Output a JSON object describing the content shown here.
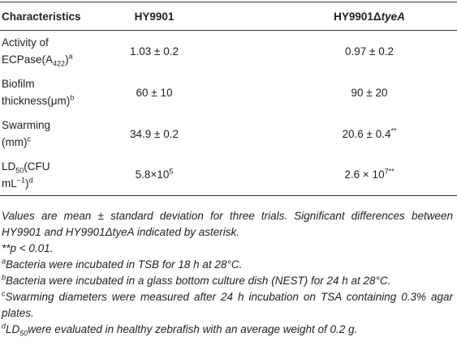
{
  "table": {
    "header": [
      [
        [
          {
            "text": "Characteristics"
          }
        ]
      ],
      [
        [
          {
            "text": "HY9901"
          }
        ]
      ],
      [
        [
          {
            "text": "HY9901Δ"
          },
          {
            "bi": "tyeA"
          }
        ]
      ]
    ],
    "rows": [
      [
        [
          [
            {
              "text": "Activity of"
            }
          ],
          [
            {
              "text": "ECPase(A"
            },
            {
              "sub": "422"
            },
            {
              "text": ")"
            },
            {
              "sup": "a"
            }
          ]
        ],
        [
          [
            {
              "text": "1.03 ± 0.2"
            }
          ]
        ],
        [
          [
            {
              "text": "0.97 ± 0.2"
            }
          ]
        ]
      ],
      [
        [
          [
            {
              "text": "Biofilm"
            }
          ],
          [
            {
              "text": "thickness(μm)"
            },
            {
              "sup": "b"
            }
          ]
        ],
        [
          [
            {
              "text": "60 ± 10"
            }
          ]
        ],
        [
          [
            {
              "text": "90 ± 20"
            }
          ]
        ]
      ],
      [
        [
          [
            {
              "text": "Swarming"
            }
          ],
          [
            {
              "text": "(mm)"
            },
            {
              "sup": "c"
            }
          ]
        ],
        [
          [
            {
              "text": "34.9 ± 0.2"
            }
          ]
        ],
        [
          [
            {
              "text": "20.6 ± 0.4"
            },
            {
              "sup": "**"
            }
          ]
        ]
      ],
      [
        [
          [
            {
              "text": "LD"
            },
            {
              "sub": "50"
            },
            {
              "text": "(CFU"
            }
          ],
          [
            {
              "text": "mL"
            },
            {
              "sup": "−1"
            },
            {
              "text": ")"
            },
            {
              "sup": "d"
            }
          ]
        ],
        [
          [
            {
              "text": "5.8×10"
            },
            {
              "sup": "5"
            }
          ]
        ],
        [
          [
            {
              "text": "2.6 × 10"
            },
            {
              "sup": "7**"
            }
          ]
        ]
      ]
    ]
  },
  "notes": [
    [
      {
        "text": "Values are mean ± standard deviation for three trials. Significant differences between HY9901 and HY9901ΔtyeA indicated by asterisk."
      }
    ],
    [
      {
        "text": "**p < 0.01."
      }
    ],
    [
      {
        "sup": "a"
      },
      {
        "text": "Bacteria were incubated in TSB for 18 h at 28°C."
      }
    ],
    [
      {
        "sup": "b"
      },
      {
        "text": "Bacteria were incubated in a glass bottom culture dish (NEST) for 24 h at 28°C."
      }
    ],
    [
      {
        "sup": "c"
      },
      {
        "text": "Swarming diameters were measured after 24 h incubation on TSA containing 0.3% agar plates."
      }
    ],
    [
      {
        "sup": "d"
      },
      {
        "text": "LD"
      },
      {
        "sub": "50"
      },
      {
        "text": "were evaluated in healthy zebrafish with an average weight of 0.2 g."
      }
    ]
  ]
}
